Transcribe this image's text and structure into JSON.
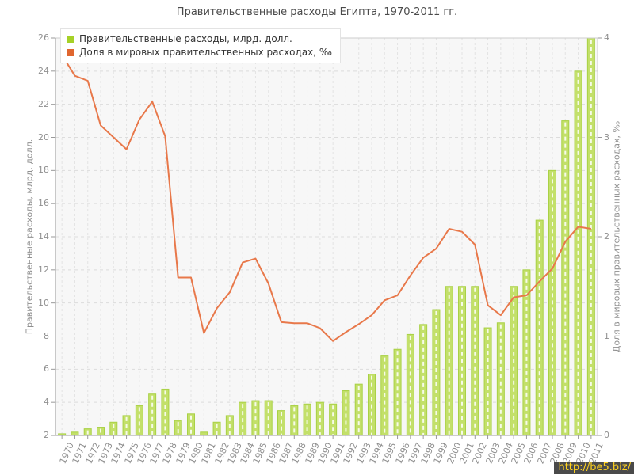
{
  "title": "Правительственные расходы Египта, 1970-2011 гг.",
  "legend": {
    "items": [
      {
        "label": "Правительственные расходы, млрд. долл.",
        "color": "#a6d127"
      },
      {
        "label": "Доля в мировых правительственных расходах, ‰",
        "color": "#e0662f"
      }
    ]
  },
  "watermark": {
    "text": "http://be5.biz/",
    "background": "#4a4a4a",
    "color": "#ffd21f"
  },
  "colors": {
    "bar_fill": "#c3e06a",
    "bar_stroke": "#a9d145",
    "bar_center_dash": "rgba(255,255,255,0.85)",
    "line": "#e8784a",
    "plot_background": "#f7f7f7",
    "grid_h": "#dcdcdc",
    "grid_v": "#e3e3e3",
    "axis_dark": "#999999",
    "axis_light": "#cccccc",
    "tick_text": "#8f8f8f"
  },
  "chart_data": {
    "type": "bar",
    "title": "Правительственные расходы Египта, 1970-2011 гг.",
    "categories": [
      "1970",
      "1971",
      "1972",
      "1973",
      "1974",
      "1975",
      "1976",
      "1977",
      "1978",
      "1979",
      "1980",
      "1981",
      "1982",
      "1983",
      "1984",
      "1985",
      "1986",
      "1987",
      "1988",
      "1989",
      "1990",
      "1991",
      "1992",
      "1993",
      "1994",
      "1995",
      "1996",
      "1997",
      "1998",
      "1999",
      "2000",
      "2001",
      "2002",
      "2003",
      "2004",
      "2005",
      "2006",
      "2007",
      "2008",
      "2009",
      "2010",
      "2011"
    ],
    "series": [
      {
        "name": "Правительственные расходы, млрд. долл.",
        "type": "bar",
        "axis": "left",
        "values": [
          2.1,
          2.2,
          2.4,
          2.5,
          2.8,
          3.2,
          3.8,
          4.5,
          4.8,
          2.9,
          3.3,
          2.2,
          2.8,
          3.2,
          4.0,
          4.1,
          4.1,
          3.5,
          3.8,
          3.9,
          4.0,
          3.9,
          4.7,
          5.1,
          5.7,
          6.8,
          7.2,
          8.1,
          8.7,
          9.6,
          11.0,
          11.0,
          11.0,
          8.5,
          8.8,
          11.0,
          12.0,
          15.0,
          18.0,
          21.0,
          24.0,
          26.0
        ]
      },
      {
        "name": "Доля в мировых правительственных расходах, ‰",
        "type": "line",
        "axis": "right",
        "values": [
          3.83,
          3.62,
          3.57,
          3.12,
          3.0,
          2.88,
          3.18,
          3.36,
          3.01,
          1.59,
          1.59,
          1.03,
          1.28,
          1.44,
          1.74,
          1.78,
          1.53,
          1.14,
          1.13,
          1.13,
          1.08,
          0.95,
          1.04,
          1.12,
          1.21,
          1.36,
          1.41,
          1.61,
          1.79,
          1.88,
          2.08,
          2.05,
          1.92,
          1.31,
          1.21,
          1.39,
          1.41,
          1.55,
          1.68,
          1.95,
          2.1,
          2.08
        ]
      }
    ],
    "left_axis": {
      "label": "Правительственные расходы, млрд. долл.",
      "min": 2,
      "max": 26,
      "step": 2
    },
    "right_axis": {
      "label": "Доля в мировых правительственных расходах, ‰",
      "min": 0,
      "max": 4,
      "step": 1
    },
    "grid": true,
    "legend_position": "top-left"
  }
}
